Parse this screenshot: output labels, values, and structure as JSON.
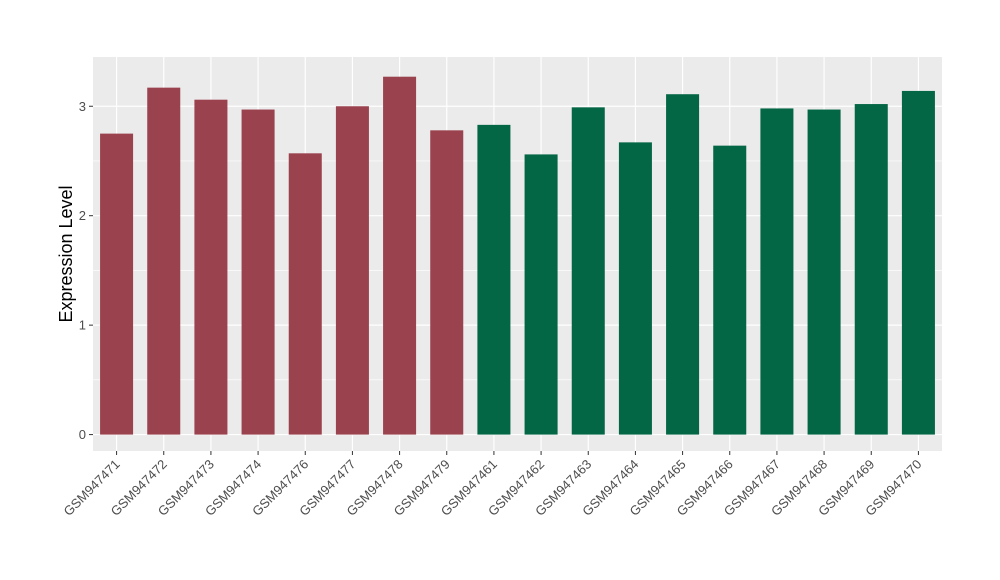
{
  "chart_data": {
    "type": "bar",
    "title": "",
    "xlabel": "",
    "ylabel": "Expression Level",
    "ylim": [
      -0.15,
      3.45
    ],
    "yticks": [
      0,
      1,
      2,
      3
    ],
    "grid": true,
    "legend": "none",
    "categories": [
      "GSM947471",
      "GSM947472",
      "GSM947473",
      "GSM947474",
      "GSM947476",
      "GSM947477",
      "GSM947478",
      "GSM947479",
      "GSM947461",
      "GSM947462",
      "GSM947463",
      "GSM947464",
      "GSM947465",
      "GSM947466",
      "GSM947467",
      "GSM947468",
      "GSM947469",
      "GSM947470"
    ],
    "values": [
      2.75,
      3.17,
      3.06,
      2.97,
      2.57,
      3.0,
      3.27,
      2.78,
      2.83,
      2.56,
      2.99,
      2.67,
      3.11,
      2.64,
      2.98,
      2.97,
      3.02,
      3.14
    ],
    "groups": [
      0,
      0,
      0,
      0,
      0,
      0,
      0,
      0,
      1,
      1,
      1,
      1,
      1,
      1,
      1,
      1,
      1,
      1
    ],
    "group_colors": [
      "#9b424f",
      "#036645"
    ],
    "panel_color": "#ebebeb",
    "grid_color": "#ffffff"
  }
}
